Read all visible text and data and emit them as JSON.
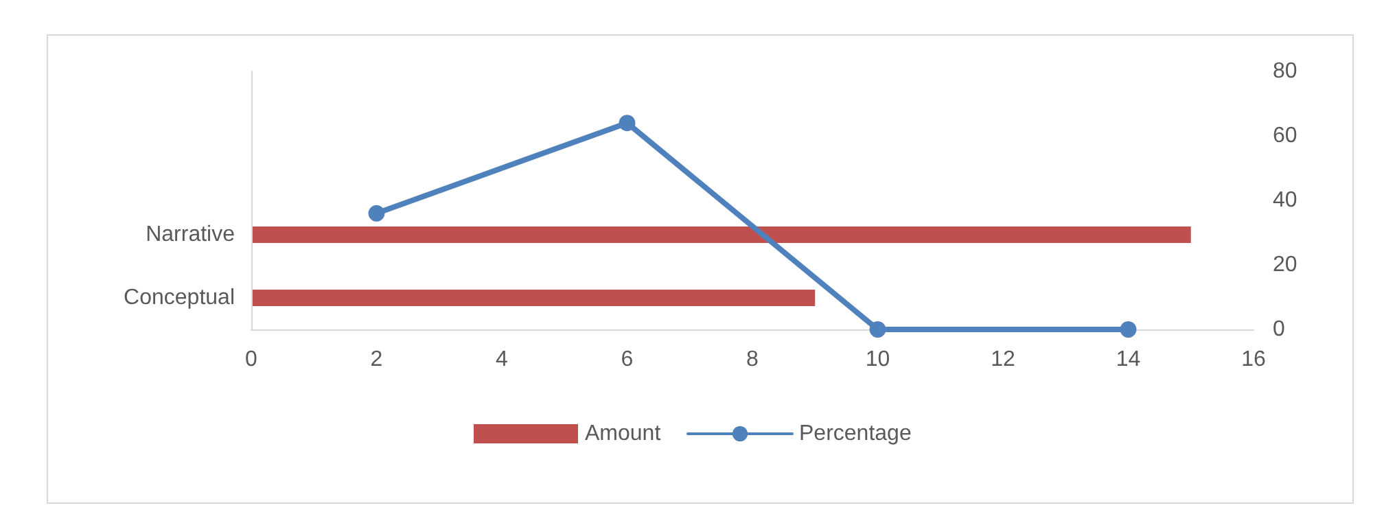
{
  "chart_data": [
    {
      "type": "bar",
      "orientation": "horizontal",
      "categories": [
        "Narrative",
        "Conceptual"
      ],
      "series": [
        {
          "name": "Amount",
          "color": "#c0504d",
          "values": [
            15,
            9
          ]
        }
      ],
      "xlim": [
        0,
        16
      ],
      "xticks": [
        0,
        2,
        4,
        6,
        8,
        10,
        12,
        14,
        16
      ],
      "grid": false,
      "legend": "bottom"
    },
    {
      "type": "line",
      "x": [
        2,
        6,
        10,
        14
      ],
      "series": [
        {
          "name": "Percentage",
          "axis": "y2",
          "color": "#4f81bd",
          "values": [
            36,
            64,
            0,
            0
          ]
        }
      ],
      "xlim": [
        0,
        16
      ],
      "y2lim": [
        0,
        80
      ],
      "y2ticks": [
        0,
        20,
        40,
        60,
        80
      ],
      "tick_labels": "y",
      "grid": false,
      "legend": "bottom",
      "marker": "circle",
      "line_style": "solid"
    }
  ]
}
